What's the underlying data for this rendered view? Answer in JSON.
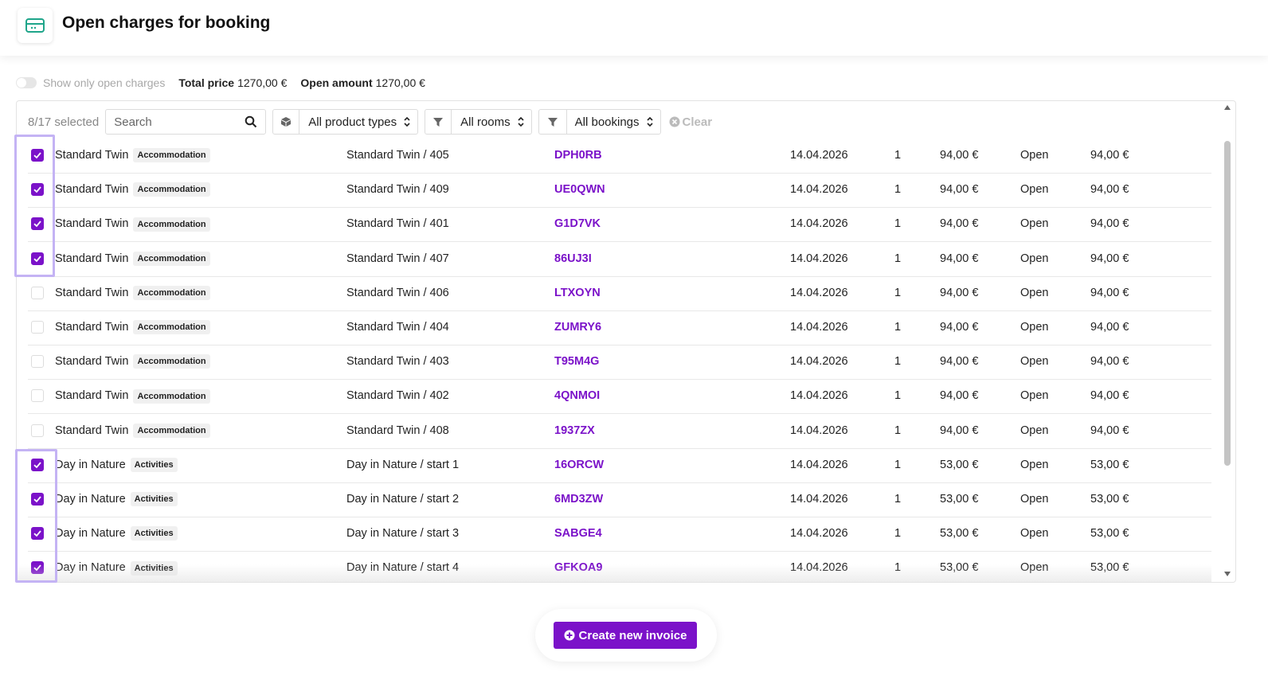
{
  "header": {
    "title": "Open charges for booking"
  },
  "summary": {
    "toggle_label": "Show only open charges",
    "total_price_label": "Total price",
    "total_price": "1270,00 €",
    "open_amount_label": "Open amount",
    "open_amount": "1270,00 €"
  },
  "toolbar": {
    "selected": "8/17 selected",
    "search_placeholder": "Search",
    "product_filter": "All product types",
    "room_filter": "All rooms",
    "booking_filter": "All bookings",
    "clear": "Clear"
  },
  "table": {
    "rows": [
      {
        "checked": true,
        "name": "Standard Twin",
        "tag": "Accommodation",
        "room": "Standard Twin / 405",
        "code": "DPH0RB",
        "date": "14.04.2026",
        "qty": "1",
        "price": "94,00 €",
        "status": "Open",
        "open": "94,00 €"
      },
      {
        "checked": true,
        "name": "Standard Twin",
        "tag": "Accommodation",
        "room": "Standard Twin / 409",
        "code": "UE0QWN",
        "date": "14.04.2026",
        "qty": "1",
        "price": "94,00 €",
        "status": "Open",
        "open": "94,00 €"
      },
      {
        "checked": true,
        "name": "Standard Twin",
        "tag": "Accommodation",
        "room": "Standard Twin / 401",
        "code": "G1D7VK",
        "date": "14.04.2026",
        "qty": "1",
        "price": "94,00 €",
        "status": "Open",
        "open": "94,00 €"
      },
      {
        "checked": true,
        "name": "Standard Twin",
        "tag": "Accommodation",
        "room": "Standard Twin / 407",
        "code": "86UJ3I",
        "date": "14.04.2026",
        "qty": "1",
        "price": "94,00 €",
        "status": "Open",
        "open": "94,00 €"
      },
      {
        "checked": false,
        "name": "Standard Twin",
        "tag": "Accommodation",
        "room": "Standard Twin / 406",
        "code": "LTXOYN",
        "date": "14.04.2026",
        "qty": "1",
        "price": "94,00 €",
        "status": "Open",
        "open": "94,00 €"
      },
      {
        "checked": false,
        "name": "Standard Twin",
        "tag": "Accommodation",
        "room": "Standard Twin / 404",
        "code": "ZUMRY6",
        "date": "14.04.2026",
        "qty": "1",
        "price": "94,00 €",
        "status": "Open",
        "open": "94,00 €"
      },
      {
        "checked": false,
        "name": "Standard Twin",
        "tag": "Accommodation",
        "room": "Standard Twin / 403",
        "code": "T95M4G",
        "date": "14.04.2026",
        "qty": "1",
        "price": "94,00 €",
        "status": "Open",
        "open": "94,00 €"
      },
      {
        "checked": false,
        "name": "Standard Twin",
        "tag": "Accommodation",
        "room": "Standard Twin / 402",
        "code": "4QNMOI",
        "date": "14.04.2026",
        "qty": "1",
        "price": "94,00 €",
        "status": "Open",
        "open": "94,00 €"
      },
      {
        "checked": false,
        "name": "Standard Twin",
        "tag": "Accommodation",
        "room": "Standard Twin / 408",
        "code": "1937ZX",
        "date": "14.04.2026",
        "qty": "1",
        "price": "94,00 €",
        "status": "Open",
        "open": "94,00 €"
      },
      {
        "checked": true,
        "name": "Day in Nature",
        "tag": "Activities",
        "room": "Day in Nature / start 1",
        "code": "16ORCW",
        "date": "14.04.2026",
        "qty": "1",
        "price": "53,00 €",
        "status": "Open",
        "open": "53,00 €"
      },
      {
        "checked": true,
        "name": "Day in Nature",
        "tag": "Activities",
        "room": "Day in Nature / start 2",
        "code": "6MD3ZW",
        "date": "14.04.2026",
        "qty": "1",
        "price": "53,00 €",
        "status": "Open",
        "open": "53,00 €"
      },
      {
        "checked": true,
        "name": "Day in Nature",
        "tag": "Activities",
        "room": "Day in Nature / start 3",
        "code": "SABGE4",
        "date": "14.04.2026",
        "qty": "1",
        "price": "53,00 €",
        "status": "Open",
        "open": "53,00 €"
      },
      {
        "checked": true,
        "name": "Day in Nature",
        "tag": "Activities",
        "room": "Day in Nature / start 4",
        "code": "GFKOA9",
        "date": "14.04.2026",
        "qty": "1",
        "price": "53,00 €",
        "status": "Open",
        "open": "53,00 €"
      }
    ]
  },
  "footer": {
    "button": "Create new invoice"
  }
}
